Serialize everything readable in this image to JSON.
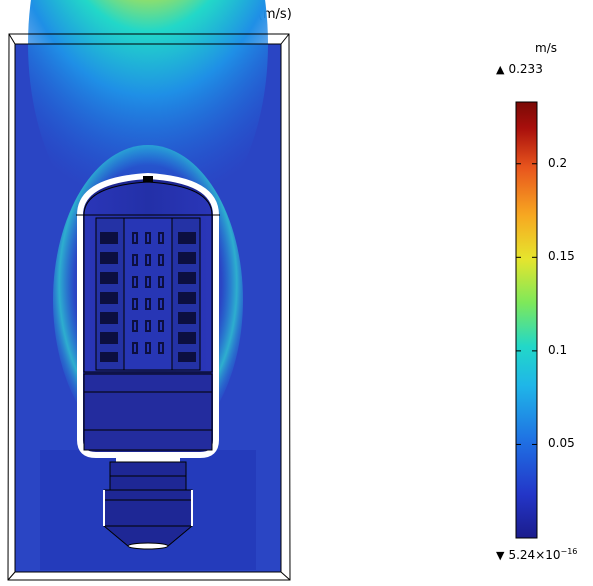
{
  "chart_data": {
    "type": "heatmap",
    "title": "Velocity magnitude (m/s)",
    "colorbar": {
      "unit": "m/s",
      "max_label": "0.233",
      "min_label_base": "5.24×10",
      "min_label_exp": "−16",
      "max": 0.233,
      "min": 5.24e-16,
      "ticks": [
        0.2,
        0.15,
        0.1,
        0.05
      ],
      "tick_labels": [
        "0.2",
        "0.15",
        "0.1",
        "0.05"
      ],
      "colormap": [
        "#1b1c8c",
        "#2336c8",
        "#1f6fe3",
        "#1fb6e8",
        "#22d8c8",
        "#7ee85a",
        "#e6e52d",
        "#f7a821",
        "#e8551d",
        "#a80f0c",
        "#7a0a06"
      ]
    },
    "field": {
      "background_level": 0.05,
      "plume_peak": 0.233,
      "side_level": 0.11
    }
  }
}
